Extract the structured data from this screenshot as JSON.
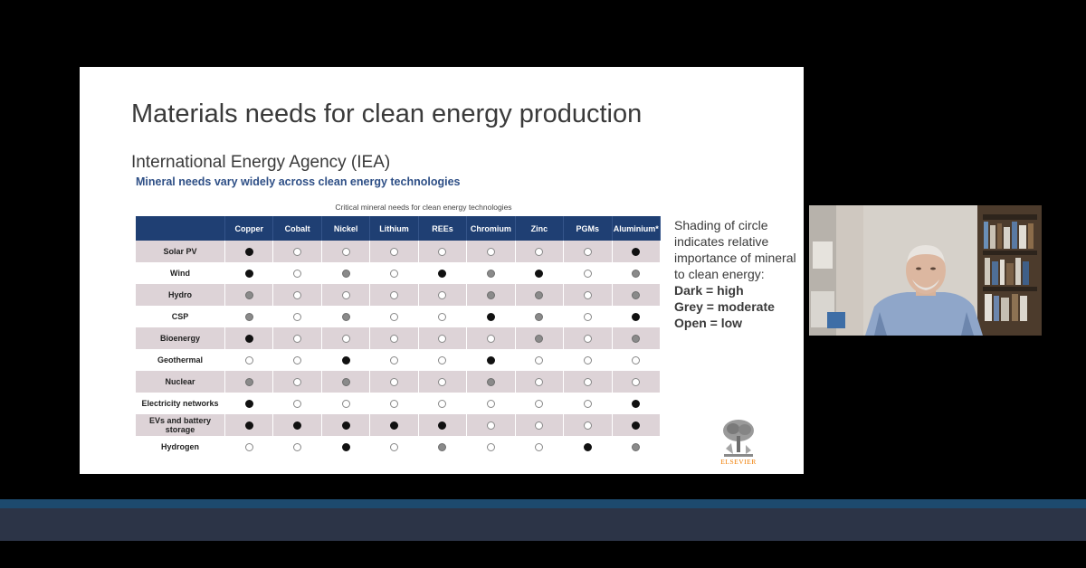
{
  "slide": {
    "title": "Materials needs for clean energy production",
    "subtitle": "International Energy Agency (IEA)",
    "iea_heading": "Mineral needs vary widely across clean energy technologies",
    "table_caption": "Critical mineral needs for clean energy technologies",
    "columns": [
      "Copper",
      "Cobalt",
      "Nickel",
      "Lithium",
      "REEs",
      "Chromium",
      "Zinc",
      "PGMs",
      "Aluminium*"
    ],
    "rows": [
      {
        "label": "Solar PV",
        "levels": [
          "high",
          "low",
          "low",
          "low",
          "low",
          "low",
          "low",
          "low",
          "high"
        ]
      },
      {
        "label": "Wind",
        "levels": [
          "high",
          "low",
          "moderate",
          "low",
          "high",
          "moderate",
          "high",
          "low",
          "moderate"
        ]
      },
      {
        "label": "Hydro",
        "levels": [
          "moderate",
          "low",
          "low",
          "low",
          "low",
          "moderate",
          "moderate",
          "low",
          "moderate"
        ]
      },
      {
        "label": "CSP",
        "levels": [
          "moderate",
          "low",
          "moderate",
          "low",
          "low",
          "high",
          "moderate",
          "low",
          "high"
        ]
      },
      {
        "label": "Bioenergy",
        "levels": [
          "high",
          "low",
          "low",
          "low",
          "low",
          "low",
          "moderate",
          "low",
          "moderate"
        ]
      },
      {
        "label": "Geothermal",
        "levels": [
          "low",
          "low",
          "high",
          "low",
          "low",
          "high",
          "low",
          "low",
          "low"
        ]
      },
      {
        "label": "Nuclear",
        "levels": [
          "moderate",
          "low",
          "moderate",
          "low",
          "low",
          "moderate",
          "low",
          "low",
          "low"
        ]
      },
      {
        "label": "Electricity networks",
        "levels": [
          "high",
          "low",
          "low",
          "low",
          "low",
          "low",
          "low",
          "low",
          "high"
        ]
      },
      {
        "label": "EVs and battery storage",
        "levels": [
          "high",
          "high",
          "high",
          "high",
          "high",
          "low",
          "low",
          "low",
          "high"
        ]
      },
      {
        "label": "Hydrogen",
        "levels": [
          "low",
          "low",
          "high",
          "low",
          "moderate",
          "low",
          "low",
          "high",
          "moderate"
        ]
      }
    ],
    "legend": {
      "intro": "Shading of circle indicates relative importance of mineral to clean energy:",
      "dark": "Dark = high",
      "grey": "Grey = moderate",
      "open": "Open = low"
    },
    "publisher_logo_text": "ELSEVIER"
  },
  "colors": {
    "header_bg": "#1f3f73",
    "row_shade": "#ddd3d7",
    "heading_blue": "#2e4f86",
    "publisher_orange": "#f07c00",
    "bar_accent": "#1d4a6e",
    "bar_main": "#2c3447"
  }
}
